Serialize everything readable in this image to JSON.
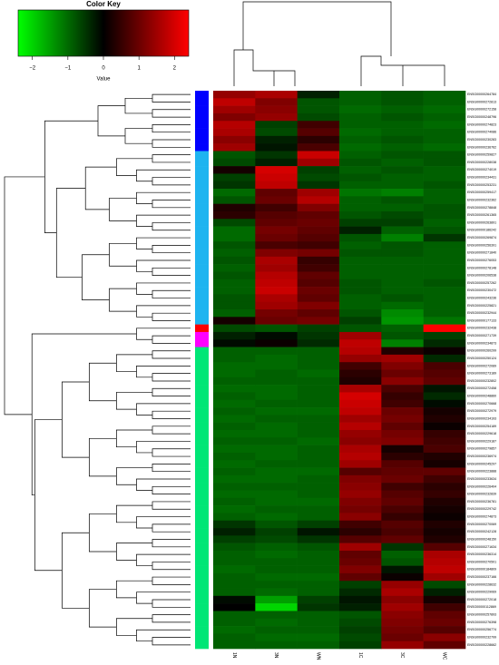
{
  "chart_data": {
    "type": "heatmap",
    "columns": [
      "1N",
      "3N",
      "WN",
      "1C",
      "3C",
      "WC"
    ],
    "rows": [
      "ENSG00000264784",
      "ENSG00000272813",
      "ENSG00000272158",
      "ENSG00000248796",
      "ENSG00000274823",
      "ENSG00000274086",
      "ENSG00000230283",
      "ENSG00000236762",
      "ENSG00000259827",
      "ENSG00000228038",
      "ENSG00000274019",
      "ENSG00000234431",
      "ENSG00000253231",
      "ENSG00000259417",
      "ENSG00000232362",
      "ENSG00000278848",
      "ENSG00000261365",
      "ENSG00000263891",
      "ENSG00000186242",
      "ENSG00000269874",
      "ENSG00000256391",
      "ENSG00000271840",
      "ENSG00000276053",
      "ENSG00000278148",
      "ENSG00000206538",
      "ENSG00000257262",
      "ENSG00000230472",
      "ENSG00000243236",
      "ENSG00000225821",
      "ENSG00000232944",
      "ENSG00000177133",
      "ENSG00000232438",
      "ENSG00000271739",
      "ENSG00000234873",
      "ENSG00000260299",
      "ENSG00000250124",
      "ENSG00000272089",
      "ENSG00000273189",
      "ENSG00000232802",
      "ENSG00000272458",
      "ENSG00000248860",
      "ENSG00000270668",
      "ENSG00000272979",
      "ENSG00000234193",
      "ENSG00000254189",
      "ENSG00000229618",
      "ENSG00000229187",
      "ENSG00000279857",
      "ENSG00000236974",
      "ENSG00000245297",
      "ENSG00000223888",
      "ENSG00000233634",
      "ENSG00000226404",
      "ENSG00000232839",
      "ENSG00000236781",
      "ENSG00000229742",
      "ENSG00000274873",
      "ENSG00000270069",
      "ENSG00000242128",
      "ENSG00000248150",
      "ENSG00000271634",
      "ENSG00000236314",
      "ENSG00000270501",
      "ENSG00000184809",
      "ENSG00000237166",
      "ENSG00000228632",
      "ENSG00000229069",
      "ENSG00000272018",
      "ENSG00000112869",
      "ENSG00000257893",
      "ENSG00000276398",
      "ENSG00000256774",
      "ENSG00000232799",
      "ENSG00000228662"
    ],
    "values": [
      [
        1.4,
        1.6,
        -0.3,
        -0.9,
        -0.8,
        -0.9
      ],
      [
        1.8,
        1.2,
        -0.8,
        -0.9,
        -0.8,
        -0.9
      ],
      [
        1.5,
        1.3,
        -0.8,
        -1.0,
        -0.9,
        -1.0
      ],
      [
        1.2,
        1.4,
        -0.7,
        -0.9,
        -0.8,
        -0.9
      ],
      [
        1.7,
        -0.6,
        0.6,
        -0.9,
        -0.9,
        -1.0
      ],
      [
        1.6,
        -0.7,
        0.8,
        -1.0,
        -0.9,
        -0.9
      ],
      [
        1.3,
        -0.3,
        0.4,
        -0.9,
        -0.8,
        -0.9
      ],
      [
        1.5,
        -0.2,
        0.7,
        -1.0,
        -0.9,
        -1.0
      ],
      [
        -0.8,
        -0.5,
        1.9,
        -0.9,
        -0.8,
        -0.8
      ],
      [
        -0.7,
        -0.3,
        1.5,
        -0.8,
        -0.9,
        -0.8
      ],
      [
        0.2,
        2.0,
        -0.6,
        -0.9,
        -0.8,
        -0.9
      ],
      [
        -0.6,
        1.9,
        -0.7,
        -0.8,
        -0.9,
        -0.9
      ],
      [
        -0.5,
        1.8,
        -0.5,
        -0.9,
        -0.9,
        -0.8
      ],
      [
        -1.0,
        0.9,
        1.5,
        -1.1,
        -1.2,
        -0.9
      ],
      [
        -0.8,
        1.0,
        1.7,
        -0.9,
        -0.8,
        -0.9
      ],
      [
        0.3,
        0.6,
        1.2,
        -0.9,
        -0.9,
        -0.8
      ],
      [
        0.4,
        0.8,
        0.9,
        -0.8,
        -0.7,
        -0.8
      ],
      [
        -0.7,
        0.9,
        1.0,
        -0.6,
        -0.6,
        -0.9
      ],
      [
        -1.0,
        1.1,
        0.9,
        -0.3,
        -0.9,
        -0.8
      ],
      [
        -1.0,
        1.0,
        0.8,
        -0.8,
        -1.2,
        -0.5
      ],
      [
        -0.8,
        0.7,
        0.6,
        -0.9,
        -0.8,
        -0.9
      ],
      [
        -0.9,
        1.2,
        1.1,
        -0.8,
        -0.8,
        -0.9
      ],
      [
        -0.8,
        1.6,
        0.5,
        -0.9,
        -0.9,
        -0.9
      ],
      [
        -0.9,
        1.5,
        0.6,
        -0.9,
        -0.9,
        -0.9
      ],
      [
        -0.8,
        1.7,
        0.9,
        -0.9,
        -0.9,
        -0.9
      ],
      [
        -0.9,
        1.8,
        0.8,
        -0.8,
        -0.9,
        -0.8
      ],
      [
        -0.9,
        1.9,
        1.0,
        -0.8,
        -0.9,
        -0.9
      ],
      [
        -0.8,
        1.6,
        0.9,
        -0.9,
        -0.8,
        -0.9
      ],
      [
        -0.8,
        1.5,
        1.2,
        -0.9,
        -1.0,
        -0.9
      ],
      [
        -0.9,
        1.1,
        0.9,
        -0.8,
        -1.3,
        -0.9
      ],
      [
        0.2,
        1.0,
        1.1,
        -0.6,
        -1.4,
        -1.1
      ],
      [
        -0.7,
        -0.8,
        -0.6,
        -0.8,
        -0.9,
        2.4
      ],
      [
        -0.3,
        -0.1,
        -0.5,
        1.5,
        -0.8,
        -0.6
      ],
      [
        -0.1,
        0.1,
        -0.4,
        1.8,
        -1.2,
        -0.4
      ],
      [
        -0.9,
        -0.9,
        -0.9,
        1.7,
        0.3,
        0.1
      ],
      [
        -0.9,
        -1.0,
        -0.9,
        1.4,
        1.5,
        -0.4
      ],
      [
        -1.0,
        -1.0,
        -0.9,
        0.6,
        1.2,
        0.7
      ],
      [
        -1.0,
        -0.9,
        -1.0,
        0.4,
        1.0,
        0.8
      ],
      [
        -0.9,
        -0.9,
        -0.9,
        0.3,
        1.3,
        0.9
      ],
      [
        -1.0,
        -1.0,
        -0.9,
        1.6,
        0.7,
        -0.2
      ],
      [
        -0.9,
        -1.0,
        -0.9,
        2.0,
        0.5,
        -0.4
      ],
      [
        -1.0,
        -0.9,
        -0.9,
        1.9,
        0.6,
        -0.1
      ],
      [
        -0.9,
        -1.0,
        -1.0,
        1.8,
        1.0,
        0.2
      ],
      [
        -1.0,
        -0.9,
        -0.9,
        1.5,
        1.1,
        0.3
      ],
      [
        -0.9,
        -1.0,
        -0.9,
        1.7,
        0.9,
        0.1
      ],
      [
        -1.0,
        -1.0,
        -0.9,
        1.4,
        1.1,
        0.5
      ],
      [
        -0.9,
        -0.9,
        -1.0,
        1.3,
        1.2,
        0.6
      ],
      [
        -1.0,
        -1.0,
        -0.9,
        1.6,
        0.2,
        0.7
      ],
      [
        -0.9,
        -1.0,
        -0.9,
        1.7,
        0.4,
        0.3
      ],
      [
        -1.0,
        -0.9,
        -0.9,
        1.5,
        0.8,
        0.2
      ],
      [
        -0.9,
        -1.0,
        -1.0,
        0.8,
        0.9,
        0.9
      ],
      [
        -1.0,
        -1.0,
        -0.9,
        1.2,
        1.0,
        0.6
      ],
      [
        -0.9,
        -0.9,
        -0.9,
        1.3,
        0.6,
        0.4
      ],
      [
        -1.0,
        -1.0,
        -0.9,
        1.4,
        0.8,
        0.5
      ],
      [
        -0.9,
        -1.0,
        -1.0,
        1.2,
        0.9,
        0.3
      ],
      [
        -1.0,
        -0.9,
        -0.9,
        1.1,
        0.7,
        0.2
      ],
      [
        -0.9,
        -1.0,
        -0.9,
        1.3,
        0.5,
        0.1
      ],
      [
        -0.5,
        -0.8,
        -0.6,
        0.6,
        0.8,
        0.3
      ],
      [
        -0.3,
        -0.6,
        -0.2,
        0.4,
        0.7,
        0.2
      ],
      [
        -0.6,
        -0.7,
        -0.5,
        0.8,
        0.9,
        0.3
      ],
      [
        -0.8,
        -0.9,
        -0.8,
        1.5,
        -0.5,
        0.8
      ],
      [
        -0.9,
        -1.0,
        -0.9,
        0.9,
        -0.9,
        1.6
      ],
      [
        -0.9,
        -0.9,
        -0.9,
        1.0,
        -0.8,
        1.7
      ],
      [
        -1.0,
        -0.9,
        -0.9,
        1.2,
        -0.2,
        1.8
      ],
      [
        -0.9,
        -1.0,
        -1.0,
        0.9,
        0.1,
        1.5
      ],
      [
        -0.9,
        -0.9,
        -0.9,
        -0.6,
        1.4,
        -0.7
      ],
      [
        -0.9,
        -1.0,
        -0.9,
        -0.4,
        1.6,
        -0.3
      ],
      [
        -0.1,
        -1.5,
        -0.6,
        -0.2,
        1.3,
        0.2
      ],
      [
        0.0,
        -2.0,
        -0.5,
        -0.3,
        1.5,
        0.6
      ],
      [
        -0.9,
        -0.9,
        -0.9,
        -0.8,
        1.3,
        0.9
      ],
      [
        -0.9,
        -1.0,
        -0.9,
        -0.7,
        1.2,
        1.0
      ],
      [
        -1.0,
        -0.9,
        -0.9,
        -0.6,
        1.1,
        0.8
      ],
      [
        -0.9,
        -1.0,
        -1.0,
        -0.7,
        1.0,
        1.3
      ],
      [
        -0.9,
        -0.9,
        -0.9,
        -0.6,
        1.4,
        0.9
      ]
    ],
    "row_side_colors": [
      "#0000ff",
      "#0000ff",
      "#0000ff",
      "#0000ff",
      "#0000ff",
      "#0000ff",
      "#0000ff",
      "#0000ff",
      "#1eb4f0",
      "#1eb4f0",
      "#1eb4f0",
      "#1eb4f0",
      "#1eb4f0",
      "#1eb4f0",
      "#1eb4f0",
      "#1eb4f0",
      "#1eb4f0",
      "#1eb4f0",
      "#1eb4f0",
      "#1eb4f0",
      "#1eb4f0",
      "#1eb4f0",
      "#1eb4f0",
      "#1eb4f0",
      "#1eb4f0",
      "#1eb4f0",
      "#1eb4f0",
      "#1eb4f0",
      "#1eb4f0",
      "#1eb4f0",
      "#1eb4f0",
      "#ff0000",
      "#ff00ff",
      "#ff00ff",
      "#00e676",
      "#00e676",
      "#00e676",
      "#00e676",
      "#00e676",
      "#00e676",
      "#00e676",
      "#00e676",
      "#00e676",
      "#00e676",
      "#00e676",
      "#00e676",
      "#00e676",
      "#00e676",
      "#00e676",
      "#00e676",
      "#00e676",
      "#00e676",
      "#00e676",
      "#00e676",
      "#00e676",
      "#00e676",
      "#00e676",
      "#00e676",
      "#00e676",
      "#00e676",
      "#00e676",
      "#00e676",
      "#00e676",
      "#00e676",
      "#00e676",
      "#00e676",
      "#00e676",
      "#00e676",
      "#00e676",
      "#00e676",
      "#00e676",
      "#00e676",
      "#00e676",
      "#00e676"
    ],
    "color_key": {
      "title": "Color Key",
      "xlabel": "Value",
      "xlim": [
        -2.4,
        2.4
      ],
      "xticks": [
        {
          "value": -2,
          "label": "−2"
        },
        {
          "value": -1,
          "label": "−1"
        },
        0,
        1,
        2
      ],
      "low_color": "#00ff00",
      "mid_color": "#000000",
      "high_color": "#ff0000"
    }
  }
}
